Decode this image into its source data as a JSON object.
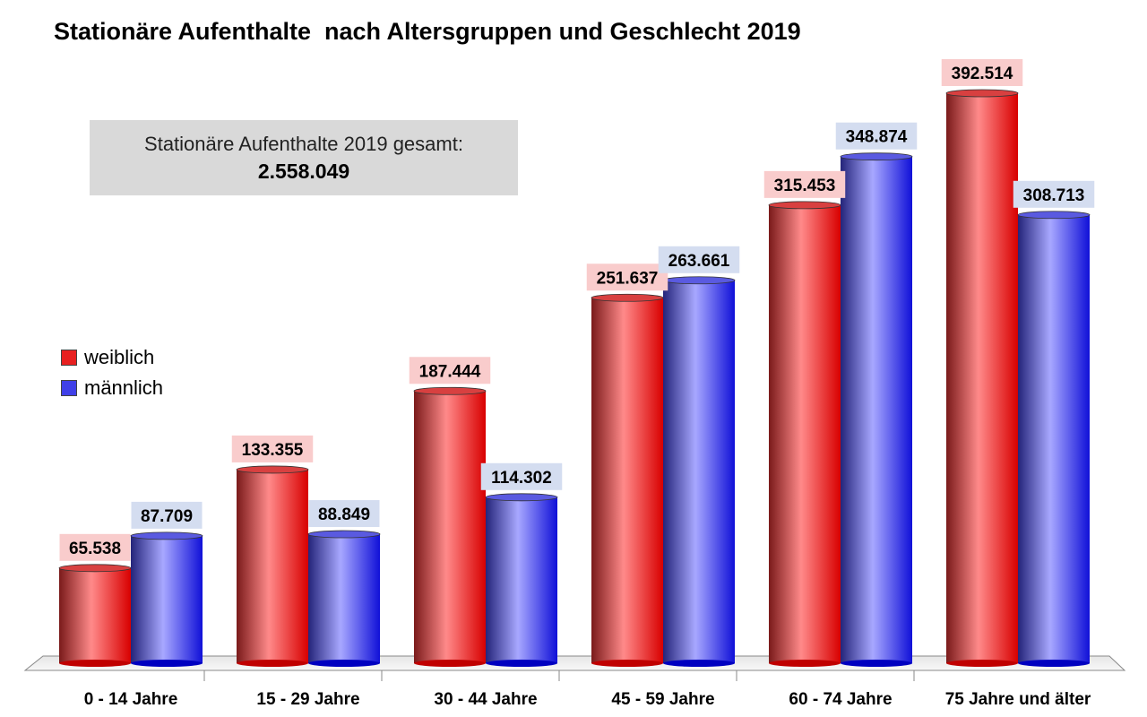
{
  "chart_data": {
    "type": "bar",
    "title": "Stationäre Aufenthalte  nach Altersgruppen und Geschlecht 2019",
    "categories": [
      "0 - 14 Jahre",
      "15 - 29 Jahre",
      "30 - 44 Jahre",
      "45 - 59 Jahre",
      "60 - 74 Jahre",
      "75 Jahre und älter"
    ],
    "series": [
      {
        "name": "weiblich",
        "color": "#e82020",
        "label_bg": "#f9cccc",
        "values": [
          65538,
          133355,
          187444,
          251637,
          315453,
          392514
        ],
        "labels": [
          "65.538",
          "133.355",
          "187.444",
          "251.637",
          "315.453",
          "392.514"
        ]
      },
      {
        "name": "männlich",
        "color": "#4040e8",
        "label_bg": "#d4ddf0",
        "values": [
          87709,
          88849,
          114302,
          263661,
          348874,
          308713
        ],
        "labels": [
          "87.709",
          "88.849",
          "114.302",
          "263.661",
          "348.874",
          "308.713"
        ]
      }
    ],
    "ylim": [
      0,
      400000
    ],
    "grid": false,
    "legend_position": "left",
    "annotation": {
      "label": "Stationäre Aufenthalte 2019 gesamt:",
      "value": "2.558.049"
    }
  }
}
